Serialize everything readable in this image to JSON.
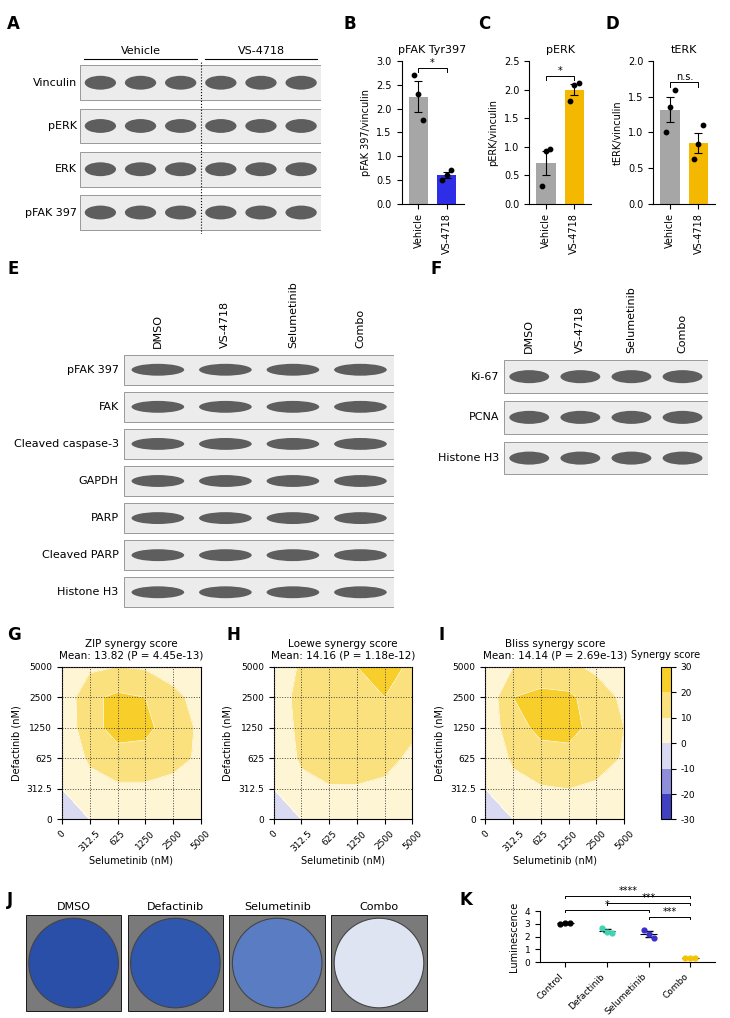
{
  "blots": [
    {
      "panel": "A",
      "groups": [
        {
          "label": "Vehicle",
          "lanes": 3
        },
        {
          "label": "VS-4718",
          "lanes": 3
        }
      ],
      "rows": [
        "Vinculin",
        "pERK",
        "ERK",
        "pFAK 397"
      ]
    },
    {
      "panel": "E",
      "lanes": [
        "DMSO",
        "VS-4718",
        "Selumetinib",
        "Combo"
      ],
      "rows": [
        "pFAK 397",
        "FAK",
        "Cleaved caspase-3",
        "GAPDH",
        "PARP",
        "Cleaved PARP",
        "Histone H3"
      ]
    },
    {
      "panel": "F",
      "lanes": [
        "DMSO",
        "VS-4718",
        "Selumetinib",
        "Combo"
      ],
      "rows": [
        "Ki-67",
        "PCNA",
        "Histone H3"
      ]
    }
  ],
  "chart_data": [
    {
      "panel": "B",
      "type": "bar",
      "title": "pFAK Tyr397",
      "y_label": "pFAK 397/vinculin",
      "categories": [
        "Vehicle",
        "VS-4718"
      ],
      "values": [
        2.25,
        0.6
      ],
      "errors": [
        0.33,
        0.07
      ],
      "points": [
        [
          2.7,
          2.3,
          1.75
        ],
        [
          0.5,
          0.6,
          0.7
        ]
      ],
      "colors": [
        "#a6a6a6",
        "#2e2ee6"
      ],
      "ylim": [
        0,
        3
      ],
      "yticks": [
        {
          "value": 0,
          "label": "0.0"
        },
        0.5,
        {
          "value": 1,
          "label": "1.0"
        },
        1.5,
        {
          "value": 2,
          "label": "2.0"
        },
        2.5,
        {
          "value": 3,
          "label": "3.0"
        }
      ],
      "comparisons": [
        {
          "pair": [
            "Vehicle",
            "VS-4718"
          ],
          "label": "*"
        }
      ]
    },
    {
      "panel": "C",
      "type": "bar",
      "title": "pERK",
      "y_label": "pERK/vinculin",
      "categories": [
        "Vehicle",
        "VS-4718"
      ],
      "values": [
        0.72,
        2.0
      ],
      "errors": [
        0.21,
        0.1
      ],
      "points": [
        [
          0.3,
          0.92,
          0.95
        ],
        [
          1.8,
          2.08,
          2.12
        ]
      ],
      "colors": [
        "#a6a6a6",
        "#f5b800"
      ],
      "ylim": [
        0,
        2.5
      ],
      "yticks": [
        {
          "value": 0,
          "label": "0.0"
        },
        0.5,
        {
          "value": 1,
          "label": "1.0"
        },
        1.5,
        {
          "value": 2,
          "label": "2.0"
        },
        2.5
      ],
      "comparisons": [
        {
          "pair": [
            "Vehicle",
            "VS-4718"
          ],
          "label": "*"
        }
      ]
    },
    {
      "panel": "D",
      "type": "bar",
      "title": "tERK",
      "y_label": "tERK/vinculin",
      "categories": [
        "Vehicle",
        "VS-4718"
      ],
      "values": [
        1.32,
        0.85
      ],
      "errors": [
        0.17,
        0.14
      ],
      "points": [
        [
          1.0,
          1.35,
          1.6
        ],
        [
          0.62,
          0.83,
          1.1
        ]
      ],
      "colors": [
        "#a6a6a6",
        "#f5b800"
      ],
      "ylim": [
        0,
        2
      ],
      "yticks": [
        {
          "value": 0,
          "label": "0.0"
        },
        0.5,
        {
          "value": 1,
          "label": "1.0"
        },
        1.5,
        {
          "value": 2,
          "label": "2.0"
        }
      ],
      "comparisons": [
        {
          "pair": [
            "Vehicle",
            "VS-4718"
          ],
          "label": "n.s."
        }
      ]
    },
    {
      "panel": "G",
      "type": "heatmap",
      "title": "ZIP synergy score",
      "subtitle": "Mean: 13.82 (P = 4.45e-13)",
      "x_label": "Selumetinib (nM)",
      "y_label": "Defactinib (nM)",
      "categories": [
        "0",
        "312.5",
        "625",
        "1250",
        "2500",
        "5000"
      ],
      "y_categories": [
        "0",
        "312.5",
        "625",
        "1250",
        "2500",
        "5000"
      ],
      "cells": [
        [
          0,
          0,
          0,
          0,
          0,
          0
        ],
        [
          0,
          5,
          8,
          8,
          6,
          3
        ],
        [
          0,
          12,
          17,
          17,
          14,
          8
        ],
        [
          2,
          17,
          23,
          22,
          16,
          8
        ],
        [
          2,
          18,
          22,
          20,
          13,
          6
        ],
        [
          0,
          8,
          10,
          9,
          5,
          2
        ]
      ],
      "grid": true
    },
    {
      "panel": "H",
      "type": "heatmap",
      "title": "Loewe synergy score",
      "subtitle": "Mean: 14.16 (P = 1.18e-12)",
      "x_label": "Selumetinib (nM)",
      "y_label": "Defactinib (nM)",
      "categories": [
        "0",
        "312.5",
        "625",
        "1250",
        "2500",
        "5000"
      ],
      "y_categories": [
        "0",
        "312.5",
        "625",
        "1250",
        "2500",
        "5000"
      ],
      "cells": [
        [
          0,
          0,
          0,
          0,
          0,
          0
        ],
        [
          0,
          6,
          9,
          9,
          8,
          6
        ],
        [
          0,
          12,
          16,
          16,
          13,
          8
        ],
        [
          0,
          14,
          17,
          18,
          16,
          12
        ],
        [
          0,
          16,
          18,
          19,
          20,
          20
        ],
        [
          0,
          12,
          16,
          20,
          24,
          18
        ]
      ],
      "grid": true
    },
    {
      "panel": "I",
      "type": "heatmap",
      "title": "Bliss synergy score",
      "subtitle": "Mean: 14.14 (P = 2.69e-13)",
      "x_label": "Selumetinib (nM)",
      "y_label": "Defactinib (nM)",
      "categories": [
        "0",
        "312.5",
        "625",
        "1250",
        "2500",
        "5000"
      ],
      "y_categories": [
        "0",
        "312.5",
        "625",
        "1250",
        "2500",
        "5000"
      ],
      "cells": [
        [
          0,
          0,
          0,
          0,
          0,
          0
        ],
        [
          0,
          6,
          9,
          10,
          8,
          5
        ],
        [
          0,
          12,
          17,
          18,
          15,
          9
        ],
        [
          2,
          17,
          22,
          22,
          18,
          10
        ],
        [
          2,
          20,
          23,
          22,
          15,
          8
        ],
        [
          0,
          10,
          13,
          12,
          8,
          4
        ]
      ],
      "grid": true,
      "colorbar": {
        "label": "Synergy score",
        "range": [
          -30,
          30
        ],
        "ticks": [
          30,
          20,
          10,
          0,
          -10,
          -20,
          -30
        ],
        "colors": [
          "#1c1cb4",
          "#ffffff",
          "#f5c400"
        ]
      }
    },
    {
      "panel": "K",
      "type": "dot",
      "y_label": "Luminescence",
      "categories": [
        "Control",
        "Defactinib",
        "Selumetinib",
        "Combo"
      ],
      "values": [
        3.04,
        2.45,
        2.2,
        0.33
      ],
      "errors": [
        0.02,
        0.13,
        0.2,
        0.01
      ],
      "points": [
        [
          3.0,
          3.05,
          3.08
        ],
        [
          2.7,
          2.35,
          2.3
        ],
        [
          2.55,
          2.2,
          1.85
        ],
        [
          0.32,
          0.33,
          0.34
        ]
      ],
      "colors": [
        "#000000",
        "#3fd4b4",
        "#3b2fcc",
        "#f5c400"
      ],
      "ylim": [
        0,
        4
      ],
      "yticks": [
        0,
        1,
        2,
        3,
        4
      ],
      "comparisons": [
        {
          "pair": [
            "Selumetinib",
            "Combo"
          ],
          "label": "***"
        },
        {
          "pair": [
            "Control",
            "Selumetinib"
          ],
          "label": "*"
        },
        {
          "pair": [
            "Defactinib",
            "Combo"
          ],
          "label": "***"
        },
        {
          "pair": [
            "Control",
            "Combo"
          ],
          "label": "****"
        }
      ]
    }
  ],
  "wells": {
    "panel": "J",
    "labels": [
      "DMSO",
      "Defactinib",
      "Selumetinib",
      "Combo"
    ],
    "colors": [
      "#2a4fa8",
      "#2f57ae",
      "#5a7cc2",
      "#dfe4f2"
    ]
  }
}
